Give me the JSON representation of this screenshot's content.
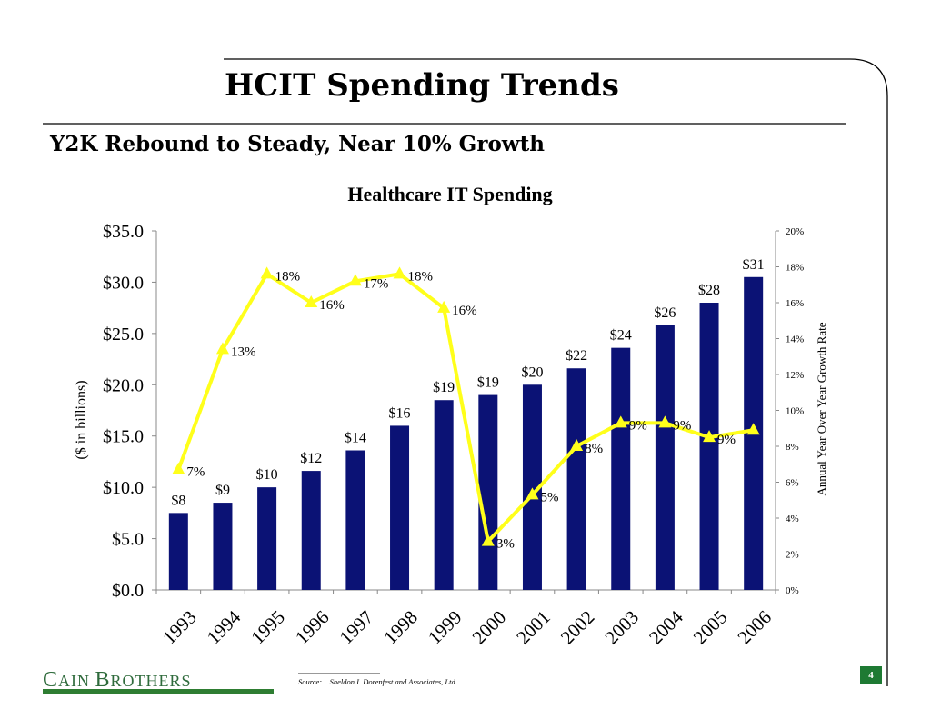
{
  "slide": {
    "title": "HCIT Spending Trends",
    "subtitle": "Y2K Rebound to Steady, Near 10% Growth",
    "source_label": "Source:",
    "source_text": "Sheldon I. Dorenfest and Associates, Ltd.",
    "page_number": "4",
    "logo_text_first": "C",
    "logo_text_first_rest": "AIN ",
    "logo_text_second": "B",
    "logo_text_second_rest": "ROTHERS",
    "colors": {
      "bar": "#0b1275",
      "line": "#ffff1a",
      "logo_green": "#2e7d32",
      "page_box": "#1e7a33"
    }
  },
  "chart_data": {
    "type": "bar",
    "title": "Healthcare IT Spending",
    "ylabel": "($ in billions)",
    "y2label": "Annual Year Over Year Growth Rate",
    "categories": [
      "1993",
      "1994",
      "1995",
      "1996",
      "1997",
      "1998",
      "1999",
      "2000",
      "2001",
      "2002",
      "2003",
      "2004",
      "2005",
      "2006"
    ],
    "ylim": [
      0,
      35
    ],
    "yticks": [
      0,
      5,
      10,
      15,
      20,
      25,
      30,
      35
    ],
    "ytick_labels": [
      "$0.0",
      "$5.0",
      "$10.0",
      "$15.0",
      "$20.0",
      "$25.0",
      "$30.0",
      "$35.0"
    ],
    "y2lim": [
      0,
      20
    ],
    "y2ticks": [
      0,
      2,
      4,
      6,
      8,
      10,
      12,
      14,
      16,
      18,
      20
    ],
    "y2tick_labels": [
      "0%",
      "2%",
      "4%",
      "6%",
      "8%",
      "10%",
      "12%",
      "14%",
      "16%",
      "18%",
      "20%"
    ],
    "series": [
      {
        "type": "bar",
        "values": [
          7.5,
          8.5,
          10.0,
          11.6,
          13.6,
          16.0,
          18.5,
          19.0,
          20.0,
          21.6,
          23.6,
          25.8,
          28.0,
          30.5
        ],
        "labels": [
          "$8",
          "$9",
          "$10",
          "$12",
          "$14",
          "$16",
          "$19",
          "$19",
          "$20",
          "$22",
          "$24",
          "$26",
          "$28",
          "$31"
        ]
      },
      {
        "type": "line",
        "axis": "secondary",
        "values": [
          6.7,
          13.4,
          17.6,
          16.0,
          17.2,
          17.6,
          15.7,
          2.7,
          5.3,
          8.0,
          9.3,
          9.3,
          8.5,
          8.9
        ],
        "labels": [
          "7%",
          "13%",
          "18%",
          "16%",
          "17%",
          "18%",
          "16%",
          "3%",
          "5%",
          "8%",
          "9%",
          "9%",
          "9%",
          ""
        ]
      }
    ],
    "grid": false
  }
}
